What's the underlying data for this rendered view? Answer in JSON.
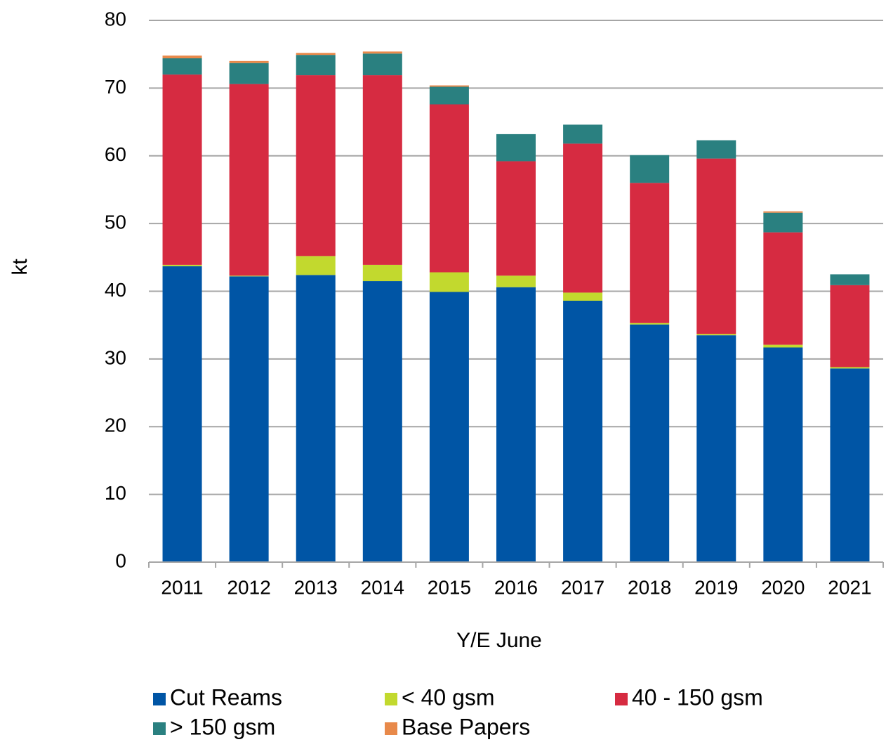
{
  "chart_data": {
    "type": "stacked-bar",
    "x_label": "Y/E June",
    "y_label": "kt",
    "categories": [
      "2011",
      "2012",
      "2013",
      "2014",
      "2015",
      "2016",
      "2017",
      "2018",
      "2019",
      "2020",
      "2021"
    ],
    "series": [
      {
        "name": "Cut Reams",
        "color": "#0055a5",
        "values": [
          43.7,
          42.2,
          42.4,
          41.5,
          39.9,
          40.6,
          38.6,
          35.1,
          33.5,
          31.7,
          28.6
        ]
      },
      {
        "name": "< 40 gsm",
        "color": "#c2d92e",
        "values": [
          0.2,
          0.1,
          2.8,
          2.4,
          2.9,
          1.7,
          1.2,
          0.2,
          0.2,
          0.4,
          0.2
        ]
      },
      {
        "name": "40 - 150 gsm",
        "color": "#d62b41",
        "values": [
          28.1,
          28.3,
          26.7,
          28.0,
          24.8,
          16.9,
          22.0,
          20.7,
          25.9,
          16.6,
          12.1
        ]
      },
      {
        "name": "> 150 gsm",
        "color": "#2a8080",
        "values": [
          2.4,
          3.1,
          3.0,
          3.2,
          2.6,
          4.0,
          2.8,
          4.1,
          2.7,
          2.9,
          1.6
        ]
      },
      {
        "name": "Base Papers",
        "color": "#e8894a",
        "values": [
          0.4,
          0.3,
          0.3,
          0.3,
          0.2,
          0,
          0,
          0,
          0,
          0.2,
          0
        ]
      }
    ],
    "ylim": [
      0,
      80
    ],
    "yticks": [
      0,
      10,
      20,
      30,
      40,
      50,
      60,
      70,
      80
    ],
    "grid": true,
    "legend": "bottom"
  }
}
